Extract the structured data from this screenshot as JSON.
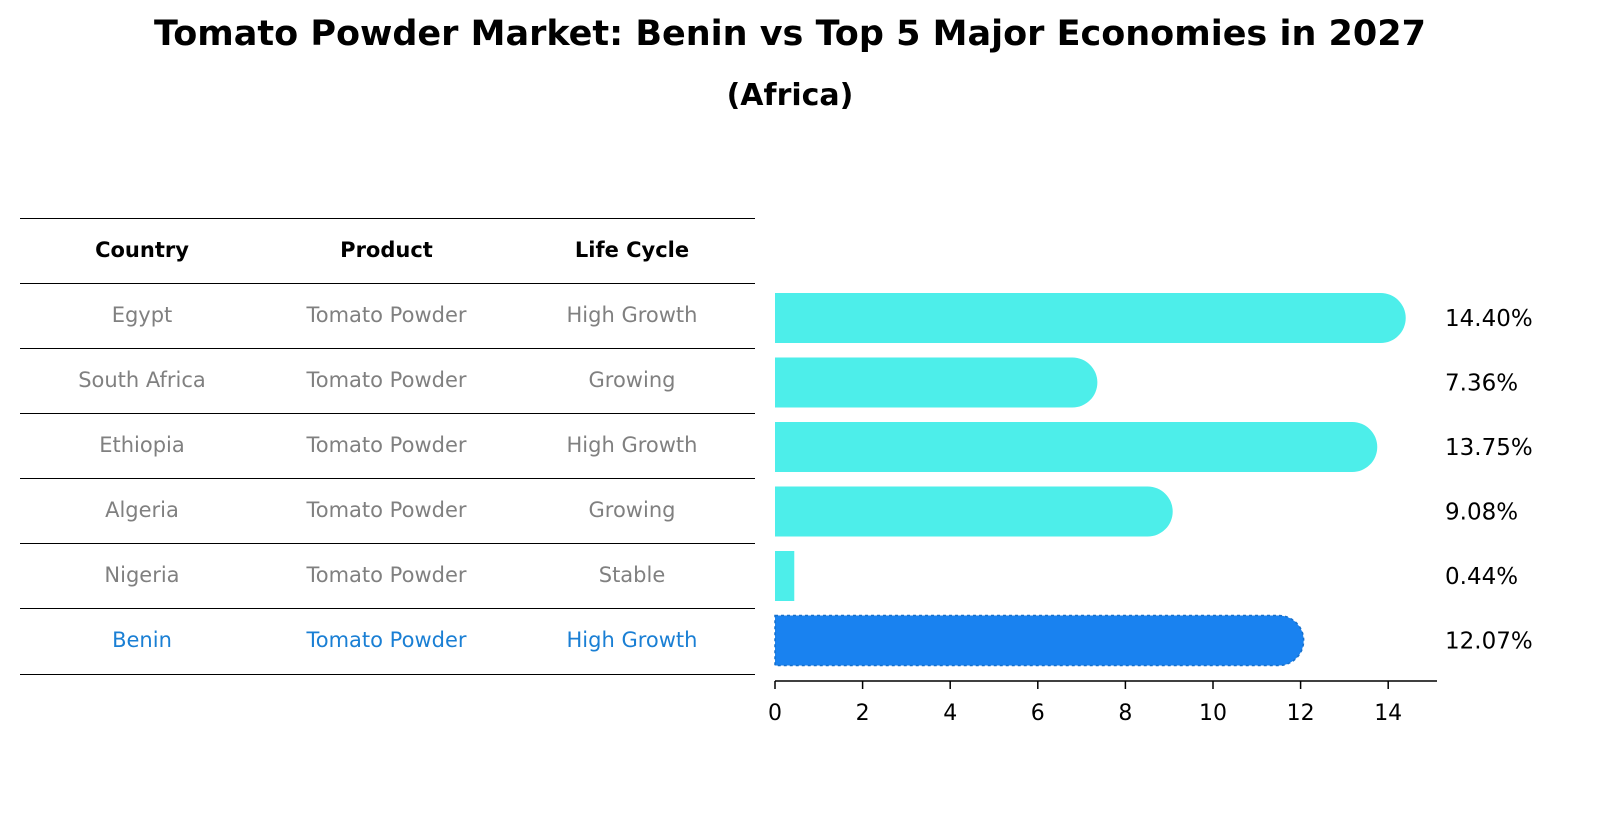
{
  "title": "Tomato Powder Market: Benin vs Top 5 Major Economies in 2027",
  "subtitle": "(Africa)",
  "colors": {
    "bar": "#4deeea",
    "highlight": "#1982f0",
    "highlight_text": "#1a7fd4",
    "cell_text": "#808080"
  },
  "table": {
    "headers": [
      "Country",
      "Product",
      "Life Cycle"
    ],
    "rows": [
      [
        "Egypt",
        "Tomato Powder",
        "High Growth"
      ],
      [
        "South Africa",
        "Tomato Powder",
        "Growing"
      ],
      [
        "Ethiopia",
        "Tomato Powder",
        "High Growth"
      ],
      [
        "Algeria",
        "Tomato Powder",
        "Growing"
      ],
      [
        "Nigeria",
        "Tomato Powder",
        "Stable"
      ],
      [
        "Benin",
        "Tomato Powder",
        "High Growth"
      ]
    ],
    "highlight_row": 5
  },
  "chart_data": {
    "type": "bar",
    "orientation": "horizontal",
    "categories": [
      "Egypt",
      "South Africa",
      "Ethiopia",
      "Algeria",
      "Nigeria",
      "Benin"
    ],
    "values": [
      14.4,
      7.36,
      13.75,
      9.08,
      0.44,
      12.07
    ],
    "value_labels": [
      "14.40%",
      "7.36%",
      "13.75%",
      "9.08%",
      "0.44%",
      "12.07%"
    ],
    "highlight_category": "Benin",
    "xlim": [
      0,
      15.1
    ],
    "xticks": [
      0,
      2,
      4,
      6,
      8,
      10,
      12,
      14
    ],
    "grid": false
  }
}
